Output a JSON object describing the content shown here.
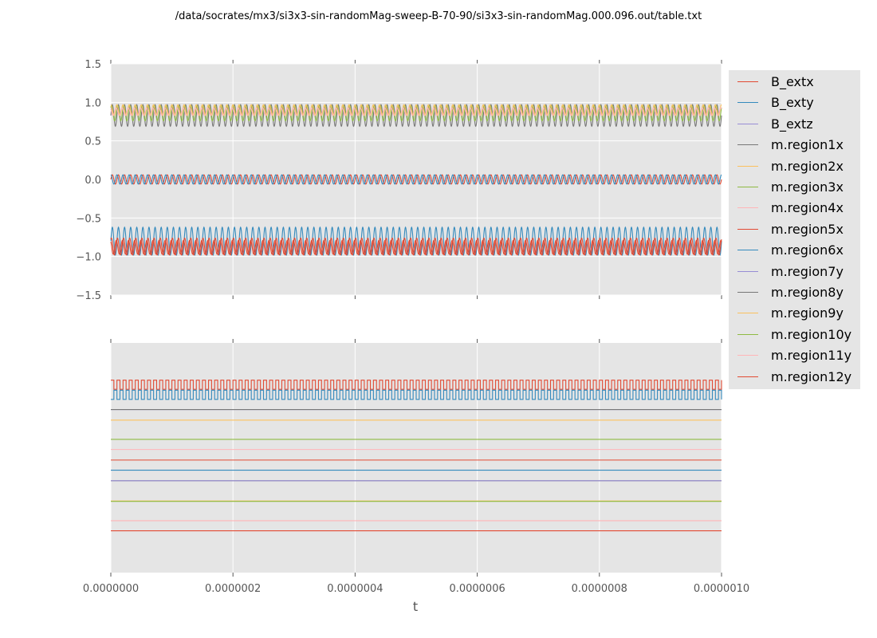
{
  "title": "/data/socrates/mx3/si3x3-sin-randomMag-sweep-B-70-90/si3x3-sin-randomMag.000.096.out/table.txt",
  "chart_data": {
    "type": "line",
    "xlabel": "t",
    "xlim": [
      0,
      1e-06
    ],
    "x_ticks": [
      "0.0000000",
      "0.0000002",
      "0.0000004",
      "0.0000006",
      "0.0000008",
      "0.0000010"
    ],
    "grid": true,
    "legend_position": "right",
    "panels": [
      {
        "name": "upper",
        "ylim": [
          -1.5,
          1.5
        ],
        "y_ticks": [
          "1.5",
          "1.0",
          "0.5",
          "0.0",
          "−0.5",
          "−1.0",
          "−1.5"
        ],
        "series": [
          {
            "name": "B_extx",
            "color": "#e24a33",
            "kind": "sine",
            "center": 0.0,
            "amplitude": 0.06,
            "cycles": 100
          },
          {
            "name": "B_exty",
            "color": "#348abd",
            "kind": "sine",
            "center": 0.0,
            "amplitude": 0.06,
            "cycles": 100,
            "phase": 1.57
          },
          {
            "name": "m.region1x",
            "color": "#777777",
            "kind": "sine",
            "center": 0.83,
            "amplitude": 0.14,
            "cycles": 100
          },
          {
            "name": "m.region3x",
            "color": "#8eba42",
            "kind": "sine",
            "center": 0.86,
            "amplitude": 0.1,
            "cycles": 100,
            "phase": 0.8
          },
          {
            "name": "m.region2x",
            "color": "#fbc15e",
            "kind": "sine",
            "center": 0.9,
            "amplitude": 0.07,
            "cycles": 100,
            "phase": 1.6
          },
          {
            "name": "m.region4x",
            "color": "#ffb5b8",
            "kind": "sine",
            "center": 0.88,
            "amplitude": 0.05,
            "cycles": 100,
            "phase": 2.4
          },
          {
            "name": "m.region6x",
            "color": "#348abd",
            "kind": "sine",
            "center": -0.8,
            "amplitude": 0.18,
            "cycles": 100
          },
          {
            "name": "m.region5x",
            "color": "#e24a33",
            "kind": "sine",
            "center": -0.87,
            "amplitude": 0.11,
            "cycles": 100,
            "phase": 1.0
          },
          {
            "name": "m.region12y",
            "color": "#e24a33",
            "kind": "sine",
            "center": -0.88,
            "amplitude": 0.09,
            "cycles": 100,
            "phase": 2.2
          }
        ]
      },
      {
        "name": "lower",
        "ylim": [
          0,
          1
        ],
        "y_ticks": [],
        "series": [
          {
            "name": "m.region12y",
            "color": "#e24a33",
            "kind": "square",
            "center": 0.818,
            "amplitude": 0.02,
            "cycles": 100
          },
          {
            "name": "B_exty",
            "color": "#348abd",
            "kind": "square",
            "center": 0.774,
            "amplitude": 0.02,
            "cycles": 100,
            "phase": 3.14
          },
          {
            "name": "m.region7y",
            "color": "#988ed5",
            "kind": "flat",
            "center": 0.71
          },
          {
            "name": "m.region8y",
            "color": "#777777",
            "kind": "flat",
            "center": 0.71
          },
          {
            "name": "m.region9y",
            "color": "#fbc15e",
            "kind": "flat",
            "center": 0.664
          },
          {
            "name": "m.region10y",
            "color": "#8eba42",
            "kind": "flat",
            "center": 0.58
          },
          {
            "name": "m.region11y",
            "color": "#ffb5b8",
            "kind": "flat",
            "center": 0.536
          },
          {
            "name": "m.region5x",
            "color": "#e24a33",
            "kind": "flat",
            "center": 0.49
          },
          {
            "name": "m.region6x",
            "color": "#348abd",
            "kind": "flat",
            "center": 0.446
          },
          {
            "name": "m.region1x",
            "color": "#777777",
            "kind": "flat",
            "center": 0.4
          },
          {
            "name": "B_extz",
            "color": "#988ed5",
            "kind": "flat",
            "center": 0.4
          },
          {
            "name": "m.region2x",
            "color": "#fbc15e",
            "kind": "flat",
            "center": 0.312
          },
          {
            "name": "m.region3x",
            "color": "#8eba42",
            "kind": "flat",
            "center": 0.31
          },
          {
            "name": "m.region4x",
            "color": "#ffb5b8",
            "kind": "flat",
            "center": 0.226
          },
          {
            "name": "B_extx",
            "color": "#e24a33",
            "kind": "flat",
            "center": 0.182
          }
        ]
      }
    ],
    "legend": [
      {
        "label": "B_extx",
        "color": "#e24a33"
      },
      {
        "label": "B_exty",
        "color": "#348abd"
      },
      {
        "label": "B_extz",
        "color": "#988ed5"
      },
      {
        "label": "m.region1x",
        "color": "#777777"
      },
      {
        "label": "m.region2x",
        "color": "#fbc15e"
      },
      {
        "label": "m.region3x",
        "color": "#8eba42"
      },
      {
        "label": "m.region4x",
        "color": "#ffb5b8"
      },
      {
        "label": "m.region5x",
        "color": "#e24a33"
      },
      {
        "label": "m.region6x",
        "color": "#348abd"
      },
      {
        "label": "m.region7y",
        "color": "#988ed5"
      },
      {
        "label": "m.region8y",
        "color": "#777777"
      },
      {
        "label": "m.region9y",
        "color": "#fbc15e"
      },
      {
        "label": "m.region10y",
        "color": "#8eba42"
      },
      {
        "label": "m.region11y",
        "color": "#ffb5b8"
      },
      {
        "label": "m.region12y",
        "color": "#e24a33"
      }
    ]
  }
}
